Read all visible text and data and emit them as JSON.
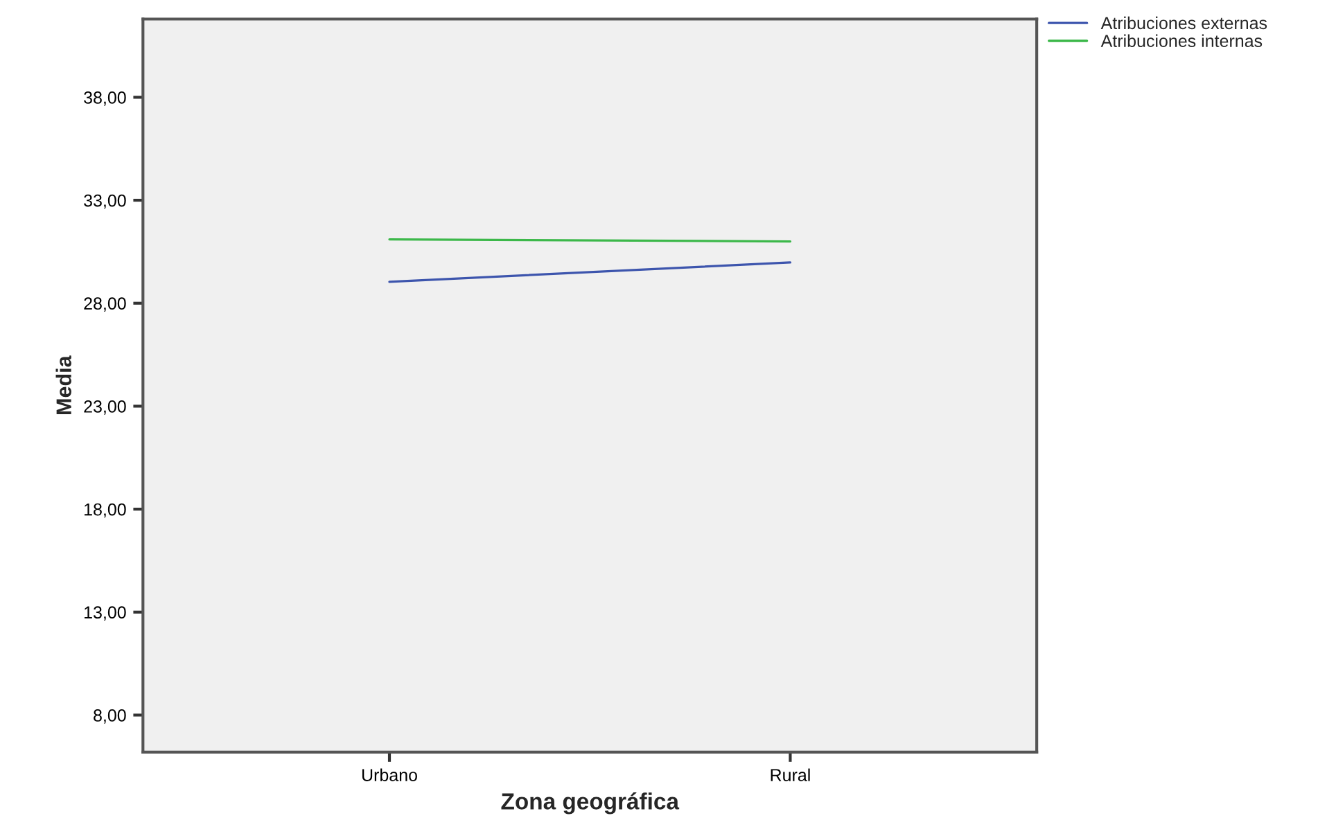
{
  "chart_data": {
    "type": "line",
    "xlabel": "Zona geográfica",
    "ylabel": "Media",
    "categories": [
      "Urbano",
      "Rural"
    ],
    "series": [
      {
        "name": "Atribuciones externas",
        "color": "#3d55ad",
        "values": [
          29.04,
          29.98
        ]
      },
      {
        "name": "Atribuciones internas",
        "color": "#3cb84a",
        "values": [
          31.1,
          31.0
        ]
      }
    ],
    "ylim": [
      6.2,
      41.8
    ],
    "yticks": [
      {
        "value": 8,
        "label": "8,00"
      },
      {
        "value": 13,
        "label": "13,00"
      },
      {
        "value": 18,
        "label": "18,00"
      },
      {
        "value": 23,
        "label": "23,00"
      },
      {
        "value": 28,
        "label": "28,00"
      },
      {
        "value": 33,
        "label": "33,00"
      },
      {
        "value": 38,
        "label": "38,00"
      }
    ],
    "grid": false,
    "legend": "top right",
    "marker": "none",
    "line_style": "solid"
  }
}
